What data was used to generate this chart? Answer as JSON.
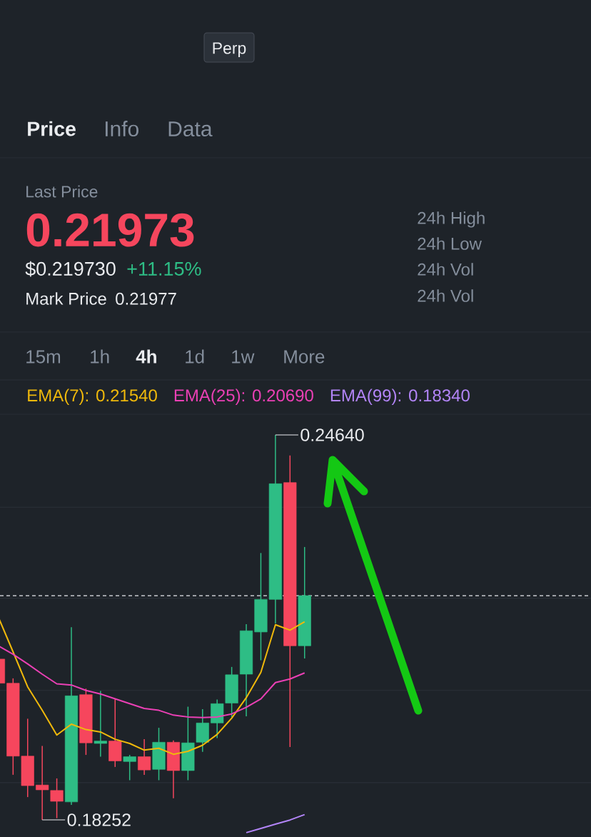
{
  "chart_data": {
    "type": "candlestick",
    "categories": [
      null,
      null,
      null,
      null,
      null,
      null,
      null,
      null,
      null,
      null,
      null,
      null,
      null,
      null,
      null,
      null,
      null,
      null,
      null,
      null,
      null,
      null
    ],
    "ohlc": [
      [
        0.2092,
        0.2092,
        0.2052,
        0.2052
      ],
      [
        0.2052,
        0.206,
        0.19,
        0.1931
      ],
      [
        0.1931,
        0.1993,
        0.1863,
        0.1882
      ],
      [
        0.1883,
        0.1948,
        0.18252,
        0.1875
      ],
      [
        0.1874,
        0.1894,
        0.1828,
        0.1856
      ],
      [
        0.1855,
        0.2145,
        0.185,
        0.2031
      ],
      [
        0.2033,
        0.2043,
        0.1933,
        0.1953
      ],
      [
        0.1952,
        0.2039,
        0.193,
        0.1956
      ],
      [
        0.1956,
        0.2026,
        0.1913,
        0.1923
      ],
      [
        0.1922,
        0.1933,
        0.1891,
        0.193
      ],
      [
        0.193,
        0.1959,
        0.19,
        0.1908
      ],
      [
        0.1909,
        0.1978,
        0.1891,
        0.1954
      ],
      [
        0.1954,
        0.1957,
        0.1861,
        0.1907
      ],
      [
        0.1907,
        0.2013,
        0.1891,
        0.1953
      ],
      [
        0.1954,
        0.2009,
        0.1938,
        0.1986
      ],
      [
        0.1986,
        0.2025,
        0.1961,
        0.2018
      ],
      [
        0.2019,
        0.2079,
        0.1996,
        0.2066
      ],
      [
        0.2067,
        0.215,
        0.1997,
        0.2139
      ],
      [
        0.2137,
        0.2268,
        0.209,
        0.2191
      ],
      [
        0.2191,
        0.2464,
        0.2151,
        0.2383
      ],
      [
        0.2385,
        0.243,
        0.1946,
        0.2114
      ],
      [
        0.2114,
        0.2278,
        0.2093,
        0.21973
      ]
    ],
    "colors": [
      "#f6465d",
      "#f6465d",
      "#f6465d",
      "#f6465d",
      "#f6465d",
      "#2ebd85",
      "#f6465d",
      "#2ebd85",
      "#f6465d",
      "#2ebd85",
      "#f6465d",
      "#2ebd85",
      "#f6465d",
      "#2ebd85",
      "#2ebd85",
      "#2ebd85",
      "#2ebd85",
      "#2ebd85",
      "#2ebd85",
      "#2ebd85",
      "#f6465d",
      "#2ebd85"
    ],
    "series": [
      {
        "type": "line",
        "name": "EMA(7): 0.21540",
        "color": "#f0b90b",
        "values": [
          0.2161,
          0.2104,
          0.2046,
          0.2007,
          0.1966,
          0.1984,
          0.1975,
          0.1971,
          0.1959,
          0.1952,
          0.1941,
          0.1944,
          0.1934,
          0.1939,
          0.1949,
          0.1967,
          0.1994,
          0.2028,
          0.207,
          0.2149,
          0.214,
          0.2154
        ]
      },
      {
        "type": "line",
        "name": "EMA(25): 0.20690",
        "color": "#eb40b5",
        "values": [
          0.2114,
          0.21,
          0.2084,
          0.2067,
          0.2051,
          0.2049,
          0.204,
          0.2034,
          0.2026,
          0.2018,
          0.201,
          0.2007,
          0.1999,
          0.1996,
          0.1995,
          0.1996,
          0.2001,
          0.2012,
          0.2026,
          0.2053,
          0.2059,
          0.2069
        ]
      },
      {
        "type": "line",
        "name": "EMA(99): 0.18340",
        "color": "#b385f8",
        "values": [
          null,
          null,
          null,
          null,
          null,
          null,
          null,
          null,
          null,
          null,
          null,
          null,
          null,
          null,
          null,
          null,
          null,
          0.1804,
          0.1811,
          0.1818,
          0.1825,
          0.1834
        ]
      }
    ],
    "yticks": [
      {
        "value": 0.2344,
        "label": null
      },
      {
        "value": 0.2193,
        "label": null
      },
      {
        "value": 0.204,
        "label": null
      },
      {
        "value": 0.1887,
        "label": null
      }
    ],
    "grid": "y",
    "legend": "top",
    "ref_lines": [
      {
        "axis": "y",
        "value": 0.21973,
        "line_style": "dashed",
        "color": "#eaecef"
      }
    ],
    "annotations": [
      "Perp",
      "Price",
      "Info",
      "Data",
      "Last Price",
      "0.21973",
      "$0.219730",
      "+11.15%",
      "Mark Price",
      "0.21977",
      "24h High",
      "24h Low",
      "24h Vol",
      "24h Vol",
      "15m",
      "1h",
      "4h",
      "1d",
      "1w",
      "More",
      "0.24640",
      "0.18252"
    ]
  }
}
